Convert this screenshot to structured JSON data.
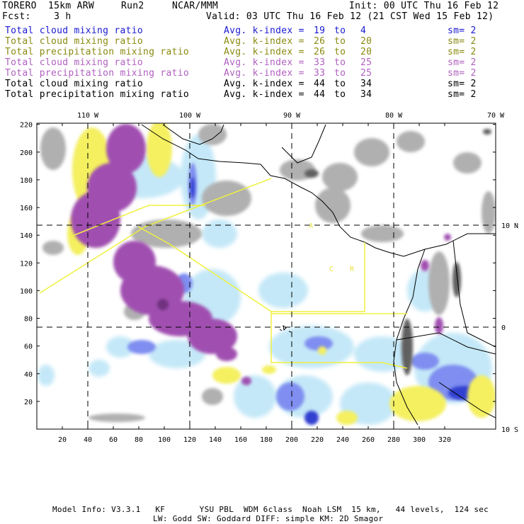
{
  "header": {
    "model": "TORERO  15km ARW",
    "run": "Run2",
    "org": "NCAR/MMM",
    "init": "Init: 00 UTC Thu 16 Feb 12",
    "fcst": "Fcst:    3 h",
    "valid": "Valid: 03 UTC Thu 16 Feb 12 (21 CST Wed 15 Feb 12)"
  },
  "legend": [
    {
      "label": "Total cloud mixing ratio",
      "kidx": "Avg. k-index =",
      "a": "19",
      "to": "to",
      "b": "4",
      "sm": "sm= 2",
      "color": "#1a1ad0"
    },
    {
      "label": "Total cloud mixing ratio",
      "kidx": "Avg. k-index =",
      "a": "26",
      "to": "to",
      "b": "20",
      "sm": "sm= 2",
      "color": "#8a8a10"
    },
    {
      "label": "Total precipitation mixing ratio",
      "kidx": "Avg. k-index =",
      "a": "26",
      "to": "to",
      "b": "20",
      "sm": "sm= 2",
      "color": "#8a8a10"
    },
    {
      "label": "Total cloud mixing ratio",
      "kidx": "Avg. k-index =",
      "a": "33",
      "to": "to",
      "b": "25",
      "sm": "sm= 2",
      "color": "#b060c0"
    },
    {
      "label": "Total precipitation mixing ratio",
      "kidx": "Avg. k-index =",
      "a": "33",
      "to": "to",
      "b": "25",
      "sm": "sm= 2",
      "color": "#b060c0"
    },
    {
      "label": "Total cloud mixing ratio",
      "kidx": "Avg. k-index =",
      "a": "44",
      "to": "to",
      "b": "34",
      "sm": "sm= 2",
      "color": "#000000"
    },
    {
      "label": "Total precipitation mixing ratio",
      "kidx": "Avg. k-index =",
      "a": "44",
      "to": "to",
      "b": "34",
      "sm": "sm= 2",
      "color": "#000000"
    }
  ],
  "axes": {
    "lon_labels": [
      "110 W",
      "100 W",
      "90 W",
      "80 W",
      "70 W"
    ],
    "lat_labels": [
      "10 N",
      "0",
      "10 S"
    ],
    "y_ticks": [
      "220",
      "200",
      "180",
      "160",
      "140",
      "120",
      "100",
      "80",
      "60",
      "40",
      "20"
    ],
    "x_ticks": [
      "20",
      "40",
      "60",
      "80",
      "100",
      "120",
      "140",
      "160",
      "180",
      "200",
      "220",
      "240",
      "260",
      "280",
      "300",
      "320"
    ]
  },
  "map_labels": {
    "letter_a": "A",
    "letter_c": "C",
    "letter_r": "R"
  },
  "footer": {
    "line1": "Model Info: V3.3.1   KF       YSU PBL  WDM 6class  Noah LSM  15 km,   44 levels,  124 sec",
    "line2": "LW: Godd SW: Goddard DIFF: simple KM: 2D Smagor"
  },
  "colors": {
    "cloud_light": "#b0b0b0",
    "cloud_dark": "#505050",
    "purple": "#a050b0",
    "yellow": "#f4f060",
    "blue": "#6070e0",
    "lightblue": "#c4e8f8",
    "domain_line": "#f0f040"
  }
}
